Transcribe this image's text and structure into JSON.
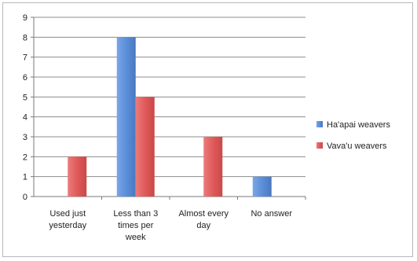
{
  "chart_data": {
    "type": "bar",
    "categories": [
      [
        "Used just",
        "yesterday"
      ],
      [
        "Less than 3",
        "times per",
        "week"
      ],
      [
        "Almost every",
        "day"
      ],
      [
        "No answer"
      ]
    ],
    "series": [
      {
        "name": "Ha'apai weavers",
        "values": [
          0,
          8,
          0,
          1
        ],
        "color": "#5b8fd9"
      },
      {
        "name": "Vava'u weavers",
        "values": [
          2,
          5,
          3,
          0
        ],
        "color": "#e05a5a"
      }
    ],
    "ylim": [
      0,
      9
    ],
    "yticks": [
      0,
      1,
      2,
      3,
      4,
      5,
      6,
      7,
      8,
      9
    ],
    "grid": true,
    "legend_position": "right"
  }
}
